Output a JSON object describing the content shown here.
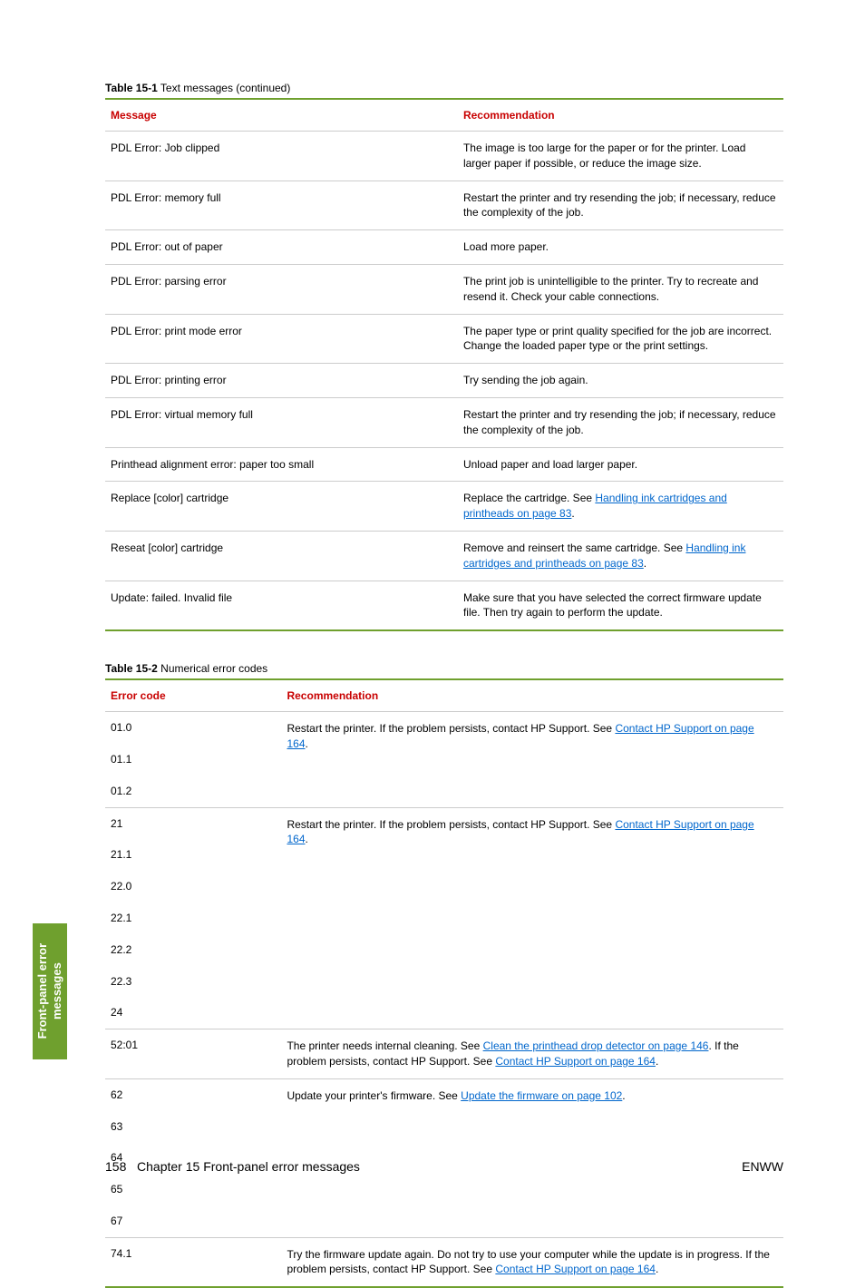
{
  "colors": {
    "accent_green": "#6fa02e",
    "header_red": "#c80000",
    "link_blue": "#0066cc",
    "rule_grey": "#cccccc",
    "text": "#000000",
    "bg": "#ffffff"
  },
  "side_tab": {
    "line1": "Front-panel error",
    "line2": "messages"
  },
  "footer": {
    "left_page": "158",
    "left_chapter": "Chapter 15   Front-panel error messages",
    "right": "ENWW"
  },
  "table1": {
    "caption_number": "Table 15-1",
    "caption_title": "  Text messages (continued)",
    "headers": {
      "c1": "Message",
      "c2": "Recommendation"
    },
    "rows": [
      {
        "msg": "PDL Error: Job clipped",
        "rec": [
          {
            "t": "The image is too large for the paper or for the printer. Load larger paper if possible, or reduce the image size."
          }
        ]
      },
      {
        "msg": "PDL Error: memory full",
        "rec": [
          {
            "t": "Restart the printer and try resending the job; if necessary, reduce the complexity of the job."
          }
        ]
      },
      {
        "msg": "PDL Error: out of paper",
        "rec": [
          {
            "t": "Load more paper."
          }
        ]
      },
      {
        "msg": "PDL Error: parsing error",
        "rec": [
          {
            "t": "The print job is unintelligible to the printer. Try to recreate and resend it. Check your cable connections."
          }
        ]
      },
      {
        "msg": "PDL Error: print mode error",
        "rec": [
          {
            "t": "The paper type or print quality specified for the job are incorrect. Change the loaded paper type or the print settings."
          }
        ]
      },
      {
        "msg": "PDL Error: printing error",
        "rec": [
          {
            "t": "Try sending the job again."
          }
        ]
      },
      {
        "msg": "PDL Error: virtual memory full",
        "rec": [
          {
            "t": "Restart the printer and try resending the job; if necessary, reduce the complexity of the job."
          }
        ]
      },
      {
        "msg": "Printhead alignment error: paper too small",
        "rec": [
          {
            "t": "Unload paper and load larger paper."
          }
        ]
      },
      {
        "msg": "Replace [color] cartridge",
        "rec": [
          {
            "t": "Replace the cartridge. See "
          },
          {
            "t": "Handling ink cartridges and printheads on page 83",
            "link": true
          },
          {
            "t": "."
          }
        ]
      },
      {
        "msg": "Reseat [color] cartridge",
        "rec": [
          {
            "t": "Remove and reinsert the same cartridge. See "
          },
          {
            "t": "Handling ink cartridges and printheads on page 83",
            "link": true
          },
          {
            "t": "."
          }
        ]
      },
      {
        "msg": "Update: failed. Invalid file",
        "rec": [
          {
            "t": "Make sure that you have selected the correct firmware update file. Then try again to perform the update."
          }
        ]
      }
    ]
  },
  "table2": {
    "caption_number": "Table 15-2",
    "caption_title": "  Numerical error codes",
    "headers": {
      "c1": "Error code",
      "c2": "Recommendation"
    },
    "groups": [
      {
        "codes": [
          "01.0",
          "01.1",
          "01.2"
        ],
        "rec": [
          {
            "t": "Restart the printer. If the problem persists, contact HP Support. See "
          },
          {
            "t": "Contact HP Support on page 164",
            "link": true
          },
          {
            "t": "."
          }
        ]
      },
      {
        "codes": [
          "21",
          "21.1",
          "22.0",
          "22.1",
          "22.2",
          "22.3",
          "24"
        ],
        "rec": [
          {
            "t": "Restart the printer. If the problem persists, contact HP Support. See "
          },
          {
            "t": "Contact HP Support on page 164",
            "link": true
          },
          {
            "t": "."
          }
        ]
      },
      {
        "codes": [
          "52:01"
        ],
        "rec": [
          {
            "t": "The printer needs internal cleaning. See "
          },
          {
            "t": "Clean the printhead drop detector on page 146",
            "link": true
          },
          {
            "t": ". If the problem persists, contact HP Support. See "
          },
          {
            "t": "Contact HP Support on page 164",
            "link": true
          },
          {
            "t": "."
          }
        ]
      },
      {
        "codes": [
          "62",
          "63",
          "64",
          "65",
          "67"
        ],
        "rec": [
          {
            "t": "Update your printer's firmware. See "
          },
          {
            "t": "Update the firmware on page 102",
            "link": true
          },
          {
            "t": "."
          }
        ]
      },
      {
        "codes": [
          "74.1"
        ],
        "rec": [
          {
            "t": "Try the firmware update again. Do not try to use your computer while the update is in progress. If the problem persists, contact HP Support. See "
          },
          {
            "t": "Contact HP Support on page 164",
            "link": true
          },
          {
            "t": "."
          }
        ]
      }
    ]
  }
}
